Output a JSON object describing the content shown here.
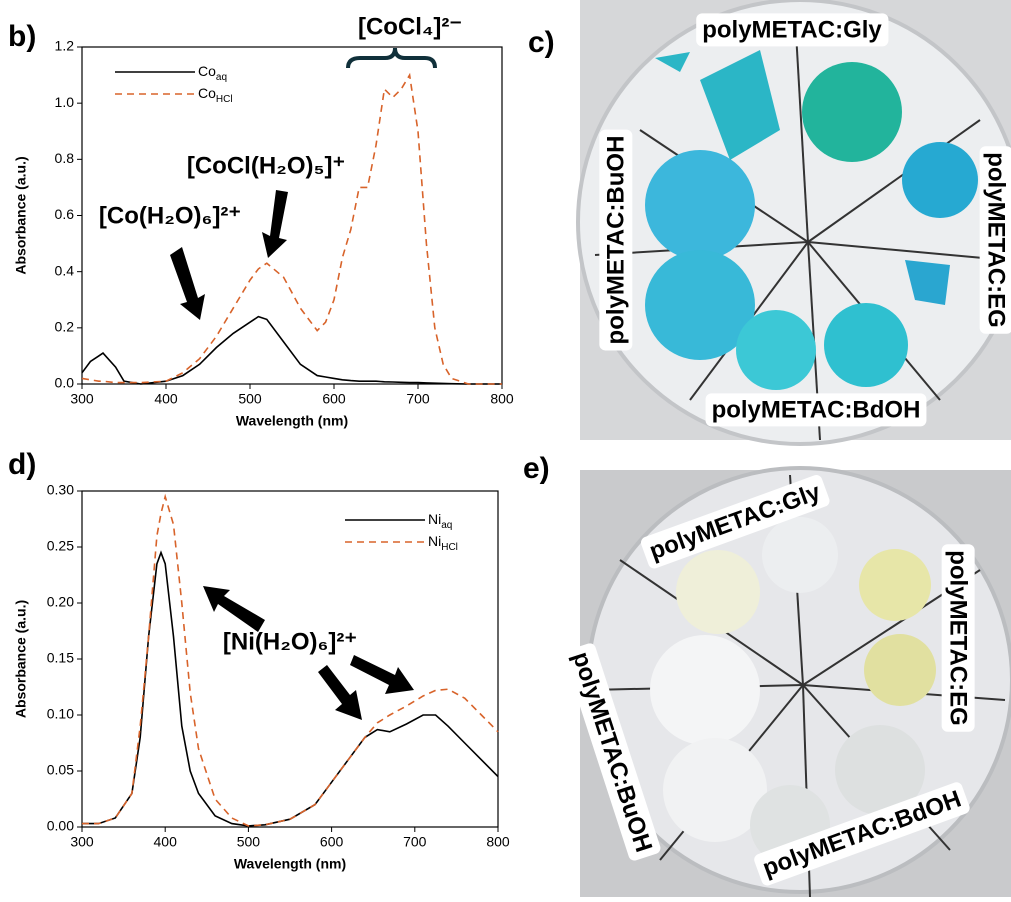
{
  "panel_labels": [
    "b)",
    "c)",
    "d)",
    "e)"
  ],
  "photos": [
    {
      "labels": [
        "polyMETAC:Gly",
        "polyMETAC:BuOH",
        "polyMETAC:EG",
        "polyMETAC:BdOH"
      ]
    },
    {
      "labels": [
        "polyMETAC:Gly",
        "polyMETAC:EG",
        "polyMETAC:BuOH",
        "polyMETAC:BdOH"
      ]
    }
  ],
  "chart_data": [
    {
      "type": "line",
      "x_label": "Wavelength (nm)",
      "y_label": "Absorbance (a.u.)",
      "xlim": [
        300,
        800
      ],
      "xticks": [
        300,
        400,
        500,
        600,
        700,
        800
      ],
      "ylim": [
        0,
        1.2
      ],
      "yticks": [
        {
          "value": 0,
          "label": "0.0"
        },
        0.2,
        0.4,
        0.6,
        0.8,
        {
          "value": 1,
          "label": "1.0"
        },
        1.2
      ],
      "annotations": [
        "[Co(H₂O)₆]²⁺",
        "[CoCl(H₂O)₅]⁺",
        "[CoCl₄]²⁻"
      ],
      "x": [
        300,
        310,
        320,
        325,
        340,
        350,
        370,
        400,
        420,
        440,
        460,
        480,
        500,
        510,
        520,
        540,
        560,
        580,
        590,
        600,
        610,
        620,
        630,
        640,
        650,
        660,
        670,
        680,
        690,
        700,
        710,
        720,
        730,
        740,
        760,
        800
      ],
      "series": [
        {
          "name": "Co",
          "name_sub": "aq",
          "color": "#000000",
          "style": "solid",
          "values": [
            0.04,
            0.08,
            0.1,
            0.11,
            0.06,
            0.01,
            0.0,
            0.01,
            0.03,
            0.07,
            0.13,
            0.18,
            0.22,
            0.24,
            0.23,
            0.15,
            0.07,
            0.03,
            0.025,
            0.02,
            0.015,
            0.012,
            0.01,
            0.01,
            0.01,
            0.008,
            0.007,
            0.006,
            0.005,
            0.005,
            0.004,
            0.003,
            0.002,
            0.001,
            0,
            0
          ]
        },
        {
          "name": "Co",
          "name_sub": "HCl",
          "color": "#d8632a",
          "style": "dashed",
          "values": [
            0.02,
            0.015,
            0.01,
            0.01,
            0.005,
            0.005,
            0.005,
            0.01,
            0.04,
            0.09,
            0.17,
            0.27,
            0.37,
            0.41,
            0.43,
            0.38,
            0.27,
            0.19,
            0.22,
            0.3,
            0.45,
            0.55,
            0.7,
            0.7,
            0.85,
            1.05,
            1.02,
            1.05,
            1.1,
            0.9,
            0.5,
            0.2,
            0.07,
            0.02,
            0,
            0
          ]
        }
      ]
    },
    {
      "type": "line",
      "x_label": "Wavelength (nm)",
      "y_label": "Absorbance (a.u.)",
      "xlim": [
        300,
        800
      ],
      "xticks": [
        300,
        400,
        500,
        600,
        700,
        800
      ],
      "ylim": [
        0,
        0.3
      ],
      "yticks": [
        {
          "value": 0,
          "label": "0.00"
        },
        {
          "value": 0.05,
          "label": "0.05"
        },
        {
          "value": 0.1,
          "label": "0.10"
        },
        {
          "value": 0.15,
          "label": "0.15"
        },
        {
          "value": 0.2,
          "label": "0.20"
        },
        {
          "value": 0.25,
          "label": "0.25"
        },
        {
          "value": 0.3,
          "label": "0.30"
        }
      ],
      "annotations": [
        "[Ni(H₂O)₆]²⁺"
      ],
      "x": [
        300,
        320,
        340,
        360,
        370,
        380,
        390,
        395,
        400,
        410,
        420,
        430,
        440,
        460,
        480,
        500,
        520,
        550,
        580,
        600,
        620,
        640,
        655,
        670,
        690,
        710,
        725,
        740,
        760,
        780,
        800
      ],
      "series": [
        {
          "name": "Ni",
          "name_sub": "aq",
          "color": "#000000",
          "style": "solid",
          "values": [
            0.003,
            0.003,
            0.008,
            0.03,
            0.08,
            0.17,
            0.235,
            0.245,
            0.235,
            0.17,
            0.09,
            0.05,
            0.03,
            0.01,
            0.003,
            0.001,
            0.002,
            0.007,
            0.02,
            0.04,
            0.06,
            0.08,
            0.087,
            0.085,
            0.092,
            0.1,
            0.1,
            0.09,
            0.075,
            0.06,
            0.045
          ]
        },
        {
          "name": "Ni",
          "name_sub": "HCl",
          "color": "#d8632a",
          "style": "dashed",
          "values": [
            0.003,
            0.003,
            0.008,
            0.03,
            0.09,
            0.17,
            0.26,
            0.28,
            0.295,
            0.27,
            0.2,
            0.12,
            0.07,
            0.025,
            0.008,
            0.001,
            0.002,
            0.007,
            0.02,
            0.04,
            0.06,
            0.08,
            0.093,
            0.1,
            0.108,
            0.117,
            0.122,
            0.123,
            0.115,
            0.1,
            0.085
          ]
        }
      ]
    }
  ]
}
